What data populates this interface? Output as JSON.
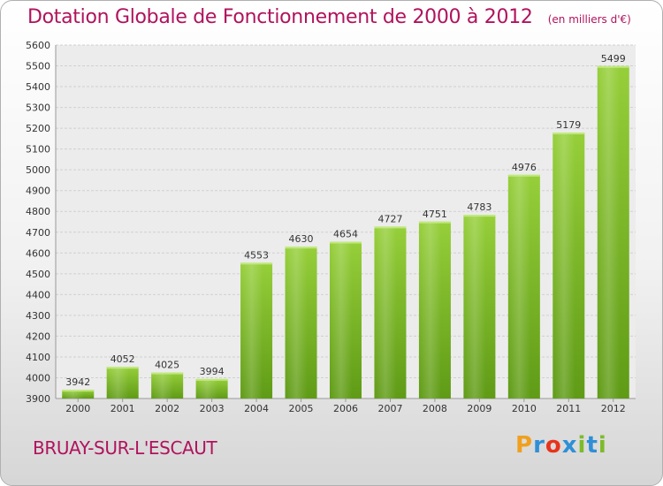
{
  "chart_data": {
    "type": "bar",
    "title": "Dotation Globale de Fonctionnement de 2000 à 2012",
    "subtitle": "(en milliers d'€)",
    "categories": [
      "2000",
      "2001",
      "2002",
      "2003",
      "2004",
      "2005",
      "2006",
      "2007",
      "2008",
      "2009",
      "2010",
      "2011",
      "2012"
    ],
    "values": [
      3942,
      4052,
      4025,
      3994,
      4553,
      4630,
      4654,
      4727,
      4751,
      4783,
      4976,
      5179,
      5499
    ],
    "ylim": [
      3900,
      5600
    ],
    "yticks": [
      3900,
      4000,
      4100,
      4200,
      4300,
      4400,
      4500,
      4600,
      4700,
      4800,
      4900,
      5000,
      5100,
      5200,
      5300,
      5400,
      5500,
      5600
    ],
    "grid": true,
    "bar_color": "#7dbb2a",
    "xlabel": "",
    "ylabel": ""
  },
  "footer": {
    "commune": "BRUAY-SUR-L'ESCAUT",
    "logo_text": "Proxiti",
    "logo_colors": [
      "#f0a01e",
      "#2f8fd6",
      "#e8331c",
      "#2f8fd6",
      "#7dbb2a",
      "#2f8fd6",
      "#7dbb2a"
    ]
  }
}
